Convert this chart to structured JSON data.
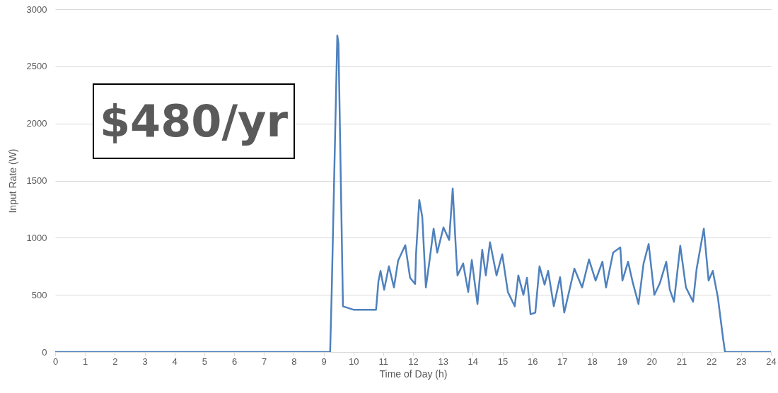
{
  "chart_data": {
    "type": "line",
    "xlabel": "Time of Day (h)",
    "ylabel": "Input Rate (W)",
    "annotations": [
      "$480/yr"
    ],
    "x": [
      0,
      9.22,
      9.27,
      9.46,
      9.5,
      9.65,
      10.0,
      10.72,
      10.76,
      10.84,
      10.91,
      11.03,
      11.19,
      11.36,
      11.5,
      11.74,
      11.9,
      12.07,
      12.1,
      12.21,
      12.31,
      12.43,
      12.54,
      12.69,
      12.81,
      13.02,
      13.21,
      13.33,
      13.45,
      13.49,
      13.68,
      13.85,
      13.97,
      14.16,
      14.32,
      14.44,
      14.58,
      14.8,
      14.99,
      15.18,
      15.41,
      15.53,
      15.7,
      15.82,
      15.94,
      16.1,
      16.24,
      16.41,
      16.53,
      16.72,
      16.93,
      17.07,
      17.41,
      17.67,
      17.9,
      18.12,
      18.35,
      18.47,
      18.71,
      18.95,
      19.02,
      19.21,
      19.37,
      19.56,
      19.73,
      19.9,
      20.09,
      20.28,
      20.49,
      20.61,
      20.75,
      20.96,
      21.15,
      21.39,
      21.51,
      21.75,
      21.91,
      22.05,
      22.22,
      22.39,
      22.46,
      24
    ],
    "series": [
      {
        "color": "#4f81bd",
        "values": [
          0,
          0,
          500,
          2770,
          2700,
          400,
          370,
          370,
          370,
          620,
          710,
          545,
          750,
          565,
          800,
          935,
          650,
          595,
          855,
          1330,
          1180,
          565,
          775,
          1080,
          870,
          1090,
          980,
          1430,
          835,
          670,
          775,
          525,
          805,
          420,
          895,
          670,
          960,
          670,
          855,
          525,
          400,
          670,
          500,
          650,
          330,
          345,
          750,
          590,
          710,
          400,
          655,
          345,
          730,
          565,
          810,
          625,
          790,
          565,
          870,
          915,
          625,
          790,
          605,
          420,
          775,
          945,
          500,
          605,
          790,
          545,
          440,
          930,
          565,
          440,
          730,
          1080,
          625,
          710,
          480,
          130,
          0,
          0
        ]
      }
    ],
    "xlim": [
      0,
      24
    ],
    "xticks": [
      0,
      1,
      2,
      3,
      4,
      5,
      6,
      7,
      8,
      9,
      10,
      11,
      12,
      13,
      14,
      15,
      16,
      17,
      18,
      19,
      20,
      21,
      22,
      23,
      24
    ],
    "ylim": [
      0,
      3000
    ],
    "yticks": [
      0,
      500,
      1000,
      1500,
      2000,
      2500,
      3000
    ],
    "grid": "y",
    "line_style": "solid"
  }
}
